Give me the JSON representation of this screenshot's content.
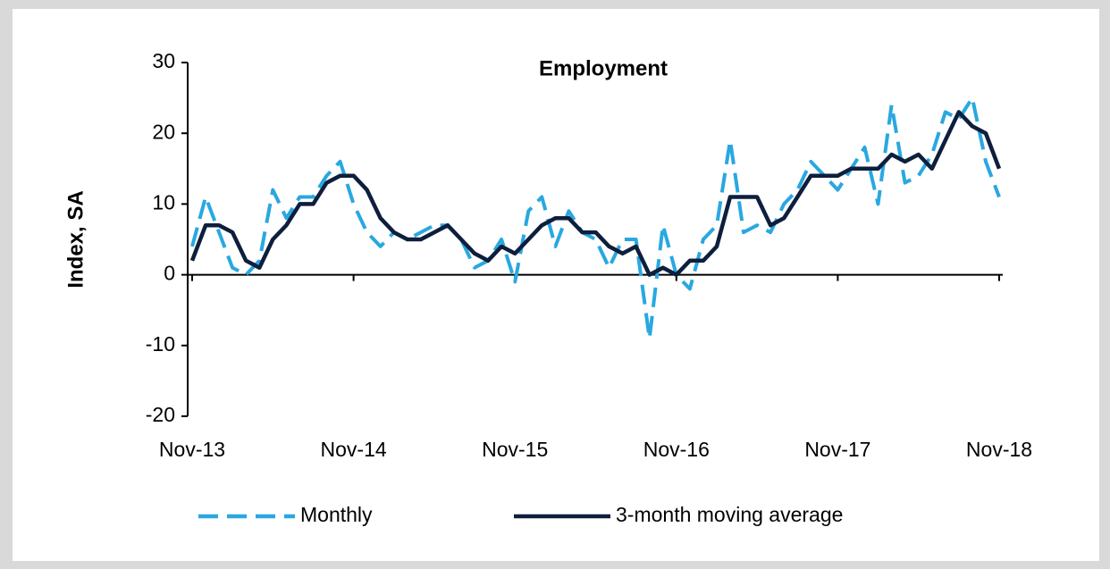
{
  "chart_data": {
    "type": "line",
    "title": "Employment",
    "y_label": "Index, SA",
    "categories": [
      "Nov-13",
      null,
      null,
      null,
      null,
      null,
      null,
      null,
      null,
      null,
      null,
      null,
      "Nov-14",
      null,
      null,
      null,
      null,
      null,
      null,
      null,
      null,
      null,
      null,
      null,
      "Nov-15",
      null,
      null,
      null,
      null,
      null,
      null,
      null,
      null,
      null,
      null,
      null,
      "Nov-16",
      null,
      null,
      null,
      null,
      null,
      null,
      null,
      null,
      null,
      null,
      null,
      "Nov-17",
      null,
      null,
      null,
      null,
      null,
      null,
      null,
      null,
      null,
      null,
      null,
      "Nov-18"
    ],
    "series": [
      {
        "name": "Monthly",
        "color": "#29a8e0",
        "dashed": true,
        "values": [
          4,
          11,
          6,
          1,
          0,
          2,
          12,
          8,
          11,
          11,
          14,
          16,
          10,
          6,
          4,
          6,
          5,
          6,
          7,
          7,
          5,
          1,
          2,
          5,
          -1,
          9,
          11,
          4,
          9,
          6,
          5,
          1,
          5,
          5,
          -9,
          7,
          0,
          -2,
          5,
          7,
          19,
          6,
          7,
          6,
          10,
          12,
          16,
          14,
          12,
          15,
          18,
          10,
          24,
          13,
          14,
          17,
          23,
          22,
          25,
          16,
          11
        ]
      },
      {
        "name": "3-month moving average",
        "color": "#0d1f3c",
        "dashed": false,
        "values": [
          2,
          7,
          7,
          6,
          2,
          1,
          5,
          7,
          10,
          10,
          13,
          14,
          14,
          12,
          8,
          6,
          5,
          5,
          6,
          7,
          5,
          3,
          2,
          4,
          3,
          5,
          7,
          8,
          8,
          6,
          6,
          4,
          3,
          4,
          0,
          1,
          0,
          2,
          2,
          4,
          11,
          11,
          11,
          7,
          8,
          11,
          14,
          14,
          14,
          15,
          15,
          15,
          17,
          16,
          17,
          15,
          19,
          23,
          21,
          20,
          15
        ]
      }
    ],
    "ylim": [
      -20,
      30
    ],
    "yticks": [
      -20,
      -10,
      0,
      10,
      20,
      30
    ],
    "grid": false,
    "legend": "bottom"
  }
}
